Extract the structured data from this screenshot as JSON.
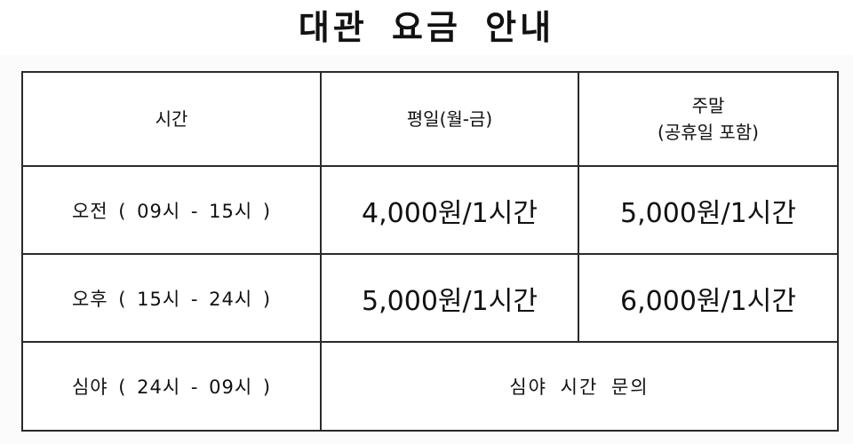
{
  "title": "대관 요금 안내",
  "table": {
    "headers": {
      "time": "시간",
      "weekday": "평일(월-금)",
      "weekend_line1": "주말",
      "weekend_line2": "(공휴일 포함)"
    },
    "rows": [
      {
        "time": "오전 ( 09시 - 15시 )",
        "weekday": "4,000원/1시간",
        "weekend": "5,000원/1시간"
      },
      {
        "time": "오후 ( 15시 - 24시 )",
        "weekday": "5,000원/1시간",
        "weekend": "6,000원/1시간"
      }
    ],
    "late_night": {
      "time": "심야 ( 24시 - 09시 )",
      "note": "심야 시간 문의"
    }
  }
}
